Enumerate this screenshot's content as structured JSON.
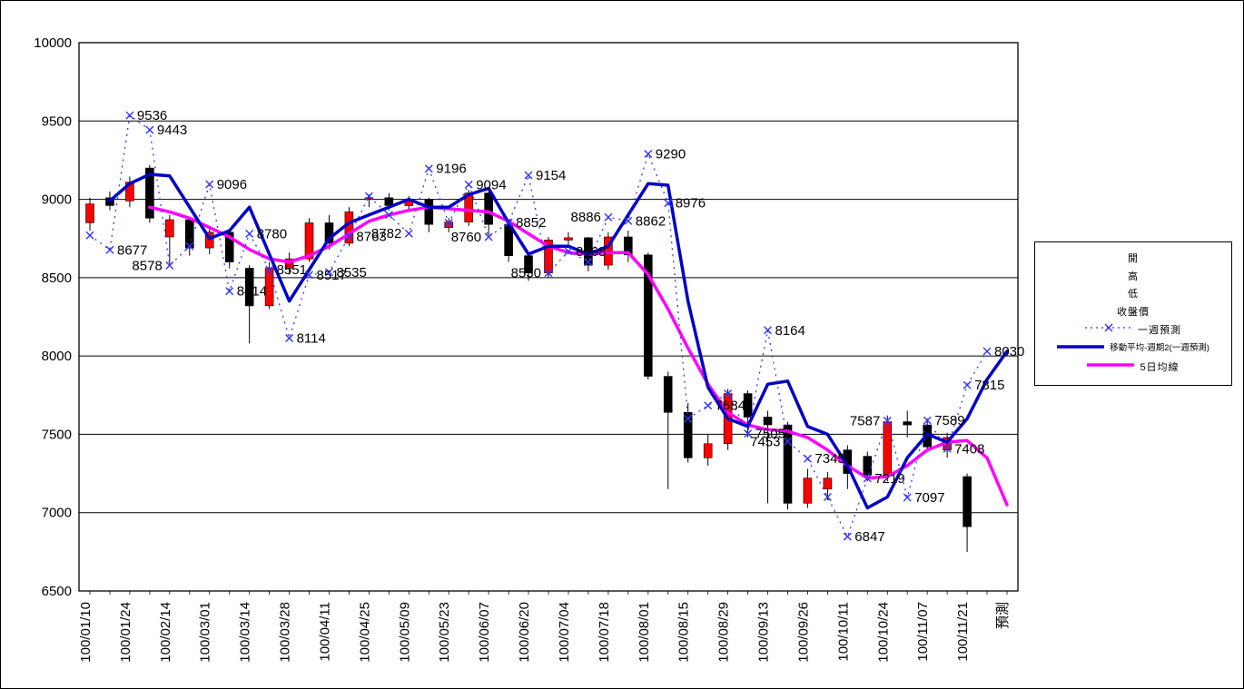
{
  "chart_data": {
    "type": "candlestick",
    "title": "",
    "y_axis": {
      "min": 6500,
      "max": 10000,
      "step": 500,
      "tick_labels": [
        "6500",
        "7000",
        "7500",
        "8000",
        "8500",
        "9000",
        "9500",
        "10000"
      ]
    },
    "x_labels": [
      "100/01/10",
      "",
      "100/01/24",
      "",
      "100/02/14",
      "",
      "100/03/01",
      "",
      "100/03/14",
      "",
      "100/03/28",
      "",
      "100/04/11",
      "",
      "100/04/25",
      "",
      "100/05/09",
      "",
      "100/05/23",
      "",
      "100/06/07",
      "",
      "100/06/20",
      "",
      "100/07/04",
      "",
      "100/07/18",
      "",
      "100/08/01",
      "",
      "100/08/15",
      "",
      "100/08/29",
      "",
      "100/09/13",
      "",
      "100/09/26",
      "",
      "100/10/11",
      "",
      "100/10/24",
      "",
      "100/11/07",
      "",
      "100/11/21",
      "",
      "預測"
    ],
    "colors": {
      "up": "#ff0000",
      "down": "#000000",
      "wick": "#000000",
      "grid": "#000000"
    },
    "candles": [
      [
        8850,
        9010,
        8800,
        8970
      ],
      [
        9010,
        9050,
        8930,
        8960
      ],
      [
        8990,
        9145,
        8950,
        9110
      ],
      [
        9200,
        9220,
        8850,
        8880
      ],
      [
        8760,
        8900,
        8578,
        8870
      ],
      [
        8870,
        8890,
        8640,
        8690
      ],
      [
        8690,
        8820,
        8650,
        8790
      ],
      [
        8790,
        8800,
        8560,
        8600
      ],
      [
        8560,
        8580,
        8080,
        8320
      ],
      [
        8320,
        8600,
        8300,
        8560
      ],
      [
        8560,
        8660,
        8520,
        8620
      ],
      [
        8620,
        8880,
        8600,
        8850
      ],
      [
        8850,
        8900,
        8680,
        8720
      ],
      [
        8720,
        8950,
        8700,
        8920
      ],
      [
        9000,
        9030,
        8950,
        9010
      ],
      [
        9010,
        9040,
        8930,
        8960
      ],
      [
        8960,
        9020,
        8930,
        9000
      ],
      [
        9000,
        9010,
        8790,
        8840
      ],
      [
        8820,
        8880,
        8790,
        8855
      ],
      [
        8855,
        9060,
        8830,
        9040
      ],
      [
        9040,
        9050,
        8770,
        8840
      ],
      [
        8840,
        8850,
        8600,
        8640
      ],
      [
        8640,
        8660,
        8480,
        8530
      ],
      [
        8530,
        8760,
        8500,
        8740
      ],
      [
        8740,
        8790,
        8690,
        8755
      ],
      [
        8755,
        8760,
        8540,
        8580
      ],
      [
        8580,
        8790,
        8550,
        8760
      ],
      [
        8760,
        8800,
        8600,
        8645
      ],
      [
        8645,
        8660,
        7850,
        7870
      ],
      [
        7870,
        7900,
        7150,
        7640
      ],
      [
        7640,
        7700,
        7320,
        7350
      ],
      [
        7350,
        7500,
        7300,
        7440
      ],
      [
        7440,
        7790,
        7400,
        7760
      ],
      [
        7760,
        7780,
        7480,
        7610
      ],
      [
        7610,
        7650,
        7060,
        7560
      ],
      [
        7560,
        7580,
        7020,
        7060
      ],
      [
        7060,
        7280,
        7030,
        7220
      ],
      [
        7150,
        7260,
        7080,
        7220
      ],
      [
        7400,
        7430,
        7150,
        7250
      ],
      [
        7360,
        7390,
        7200,
        7240
      ],
      [
        7240,
        7620,
        7200,
        7580
      ],
      [
        7580,
        7650,
        7480,
        7560
      ],
      [
        7560,
        7600,
        7390,
        7420
      ],
      [
        7400,
        7510,
        7350,
        7480
      ],
      [
        7230,
        7250,
        6750,
        6910
      ],
      null,
      null
    ],
    "series": [
      {
        "name": "一週預測",
        "type": "dotted-x",
        "color": "#3333ff",
        "width": 1.3,
        "values": [
          8770,
          8677,
          9536,
          9443,
          8578,
          8700,
          9096,
          8414,
          8780,
          8551,
          8114,
          8517,
          8535,
          8763,
          9020,
          8900,
          8782,
          9196,
          8850,
          9094,
          8760,
          8852,
          9154,
          8530,
          8668,
          8600,
          8886,
          8862,
          9290,
          8976,
          7600,
          7684,
          7760,
          7505,
          8164,
          7453,
          7345,
          7100,
          6847,
          7219,
          7587,
          7097,
          7589,
          7408,
          7815,
          8030,
          null
        ]
      },
      {
        "name": "移動平均-週期2(一週預測)",
        "type": "line",
        "color": "#0000c8",
        "width": 3.5,
        "values": [
          null,
          8990,
          9100,
          9160,
          9150,
          8950,
          8750,
          8800,
          8950,
          8650,
          8350,
          8550,
          8750,
          8850,
          8900,
          8950,
          9000,
          8950,
          8950,
          9030,
          9070,
          8850,
          8650,
          8700,
          8700,
          8650,
          8700,
          8900,
          9100,
          9090,
          8350,
          7800,
          7600,
          7550,
          7820,
          7840,
          7550,
          7500,
          7300,
          7030,
          7100,
          7350,
          7500,
          7450,
          7600,
          7850,
          8030
        ]
      },
      {
        "name": "5日均線",
        "type": "line",
        "color": "#ff00ff",
        "width": 3.5,
        "values": [
          null,
          null,
          null,
          8950,
          8920,
          8880,
          8820,
          8760,
          8680,
          8620,
          8600,
          8640,
          8700,
          8780,
          8860,
          8900,
          8930,
          8950,
          8940,
          8930,
          8920,
          8860,
          8780,
          8700,
          8660,
          8650,
          8660,
          8660,
          8520,
          8300,
          8050,
          7820,
          7640,
          7560,
          7530,
          7520,
          7480,
          7400,
          7300,
          7220,
          7230,
          7300,
          7400,
          7450,
          7460,
          7350,
          7050
        ]
      }
    ],
    "annotations": [
      {
        "i": 1,
        "text": "8677",
        "anchor": "right"
      },
      {
        "i": 2,
        "text": "9536",
        "anchor": "right"
      },
      {
        "i": 3,
        "text": "9443",
        "anchor": "right"
      },
      {
        "i": 4,
        "text": "8578",
        "anchor": "left"
      },
      {
        "i": 6,
        "text": "9096",
        "anchor": "right"
      },
      {
        "i": 7,
        "text": "8414",
        "anchor": "right"
      },
      {
        "i": 8,
        "text": "8780",
        "anchor": "right"
      },
      {
        "i": 9,
        "text": "8551",
        "anchor": "right"
      },
      {
        "i": 10,
        "text": "8114",
        "anchor": "right"
      },
      {
        "i": 11,
        "text": "8517",
        "anchor": "right"
      },
      {
        "i": 12,
        "text": "8535",
        "anchor": "right"
      },
      {
        "i": 13,
        "text": "8763",
        "anchor": "right"
      },
      {
        "i": 16,
        "text": "8782",
        "anchor": "left"
      },
      {
        "i": 17,
        "text": "9196",
        "anchor": "right"
      },
      {
        "i": 19,
        "text": "9094",
        "anchor": "right"
      },
      {
        "i": 20,
        "text": "8760",
        "anchor": "left"
      },
      {
        "i": 21,
        "text": "8852",
        "anchor": "right"
      },
      {
        "i": 22,
        "text": "9154",
        "anchor": "right"
      },
      {
        "i": 23,
        "text": "8530",
        "anchor": "left"
      },
      {
        "i": 24,
        "text": "8668",
        "anchor": "right"
      },
      {
        "i": 26,
        "text": "8886",
        "anchor": "left"
      },
      {
        "i": 27,
        "text": "8862",
        "anchor": "right"
      },
      {
        "i": 28,
        "text": "9290",
        "anchor": "right"
      },
      {
        "i": 29,
        "text": "8976",
        "anchor": "right"
      },
      {
        "i": 31,
        "text": "7684",
        "anchor": "right"
      },
      {
        "i": 33,
        "text": "7505",
        "anchor": "right"
      },
      {
        "i": 34,
        "text": "8164",
        "anchor": "right"
      },
      {
        "i": 35,
        "text": "7453",
        "anchor": "left"
      },
      {
        "i": 36,
        "text": "7345",
        "anchor": "right"
      },
      {
        "i": 38,
        "text": "6847",
        "anchor": "right"
      },
      {
        "i": 39,
        "text": "7219",
        "anchor": "right"
      },
      {
        "i": 40,
        "text": "7587",
        "anchor": "left"
      },
      {
        "i": 41,
        "text": "7097",
        "anchor": "right"
      },
      {
        "i": 42,
        "text": "7589",
        "anchor": "right"
      },
      {
        "i": 43,
        "text": "7408",
        "anchor": "right"
      },
      {
        "i": 44,
        "text": "7815",
        "anchor": "right"
      },
      {
        "i": 45,
        "text": "8030",
        "anchor": "right"
      }
    ]
  },
  "legend": {
    "items": [
      {
        "label": "開"
      },
      {
        "label": "高"
      },
      {
        "label": "低"
      },
      {
        "label": "收盤價"
      },
      {
        "label": "一週預測",
        "sample": "dotted-x",
        "color": "#3333ff"
      },
      {
        "label": "移動平均-週期2(一週預測)",
        "sample": "thick",
        "color": "#0000c8",
        "long": true
      },
      {
        "label": "5日均線",
        "sample": "thick",
        "color": "#ff00ff"
      }
    ]
  }
}
